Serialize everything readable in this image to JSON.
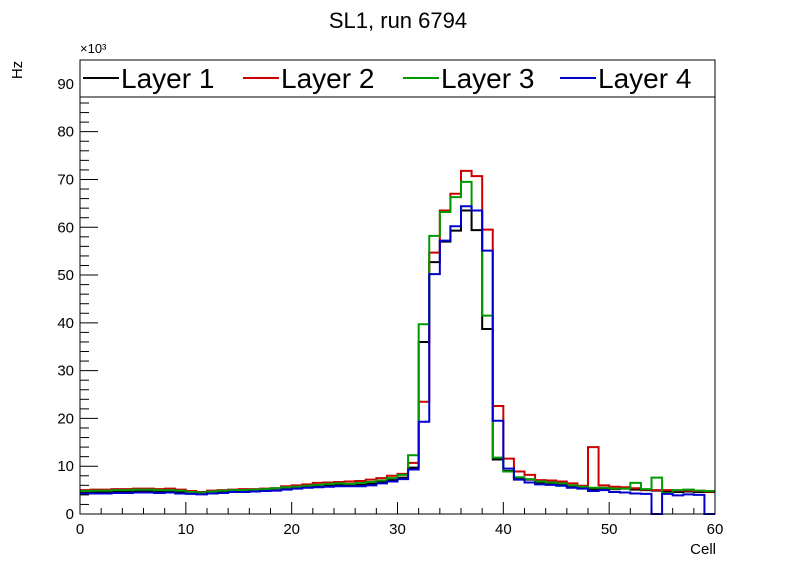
{
  "chart_data": {
    "type": "line",
    "step": true,
    "title": "SL1, run 6794",
    "xlabel": "Cell",
    "ylabel": "Hz",
    "y_exponent_label": "×10³",
    "xlim": [
      0,
      60
    ],
    "ylim": [
      0,
      95000
    ],
    "x_ticks": [
      0,
      10,
      20,
      30,
      40,
      50,
      60
    ],
    "y_ticks": [
      0,
      10,
      20,
      30,
      40,
      50,
      60,
      70,
      80,
      90
    ],
    "y_tick_unit": 1000,
    "legend_position": "top",
    "x": [
      0,
      1,
      2,
      3,
      4,
      5,
      6,
      7,
      8,
      9,
      10,
      11,
      12,
      13,
      14,
      15,
      16,
      17,
      18,
      19,
      20,
      21,
      22,
      23,
      24,
      25,
      26,
      27,
      28,
      29,
      30,
      31,
      32,
      33,
      34,
      35,
      36,
      37,
      38,
      39,
      40,
      41,
      42,
      43,
      44,
      45,
      46,
      47,
      48,
      49,
      50,
      51,
      52,
      53,
      54,
      55,
      56,
      57,
      58,
      59
    ],
    "series": [
      {
        "name": "Layer 1",
        "color": "#000000",
        "values": [
          4500,
          4600,
          4600,
          4700,
          4700,
          4800,
          4800,
          4700,
          4800,
          4600,
          4500,
          4400,
          4600,
          4800,
          4900,
          4900,
          5000,
          5100,
          5300,
          5500,
          5600,
          5700,
          5900,
          6000,
          6100,
          6000,
          6100,
          6300,
          6700,
          7100,
          7600,
          9700,
          36000,
          52700,
          57000,
          59300,
          63500,
          59400,
          38700,
          11400,
          9000,
          7500,
          7200,
          6500,
          6300,
          6100,
          5700,
          5500,
          5200,
          5300,
          5200,
          5300,
          5100,
          5000,
          4900,
          4800,
          4600,
          4700,
          4600,
          4600
        ]
      },
      {
        "name": "Layer 2",
        "color": "#cc0000",
        "values": [
          5000,
          5100,
          5100,
          5200,
          5200,
          5300,
          5300,
          5200,
          5300,
          5100,
          4800,
          4600,
          4900,
          5000,
          5100,
          5200,
          5200,
          5300,
          5400,
          5800,
          6000,
          6200,
          6500,
          6600,
          6700,
          6800,
          6900,
          7200,
          7500,
          8000,
          8400,
          10700,
          23500,
          54700,
          63500,
          67000,
          71800,
          70700,
          59500,
          22600,
          11600,
          8900,
          8200,
          7100,
          7000,
          6800,
          6400,
          5900,
          14000,
          6000,
          5700,
          5600,
          5400,
          5100,
          5000,
          5000,
          4900,
          4900,
          4800,
          4700
        ]
      },
      {
        "name": "Layer 3",
        "color": "#009900",
        "values": [
          4800,
          4900,
          4900,
          5000,
          5000,
          5100,
          5100,
          5000,
          5000,
          4900,
          4600,
          4500,
          4700,
          4900,
          5000,
          5000,
          5100,
          5200,
          5400,
          5600,
          5700,
          5900,
          6100,
          6300,
          6400,
          6300,
          6500,
          6700,
          7000,
          7500,
          8200,
          12300,
          39700,
          58200,
          63200,
          66300,
          69500,
          63500,
          41500,
          11800,
          8900,
          7700,
          7300,
          6800,
          6600,
          6400,
          6000,
          5700,
          5500,
          5500,
          5300,
          5300,
          6500,
          5200,
          7600,
          4400,
          5000,
          5100,
          4900,
          4800
        ]
      },
      {
        "name": "Layer 4",
        "color": "#0000cc",
        "values": [
          4300,
          4300,
          4300,
          4400,
          4400,
          4500,
          4500,
          4400,
          4500,
          4300,
          4200,
          4100,
          4300,
          4400,
          4600,
          4600,
          4700,
          4800,
          4900,
          5100,
          5300,
          5500,
          5600,
          5700,
          5800,
          5800,
          5800,
          6000,
          6400,
          6800,
          7300,
          9300,
          19300,
          50200,
          57200,
          60200,
          64400,
          63500,
          55100,
          19500,
          9500,
          7200,
          6600,
          6200,
          6100,
          5900,
          5500,
          5300,
          4800,
          5000,
          4600,
          4500,
          4300,
          4200,
          0,
          4200,
          3900,
          4100,
          4000,
          0
        ]
      }
    ]
  }
}
